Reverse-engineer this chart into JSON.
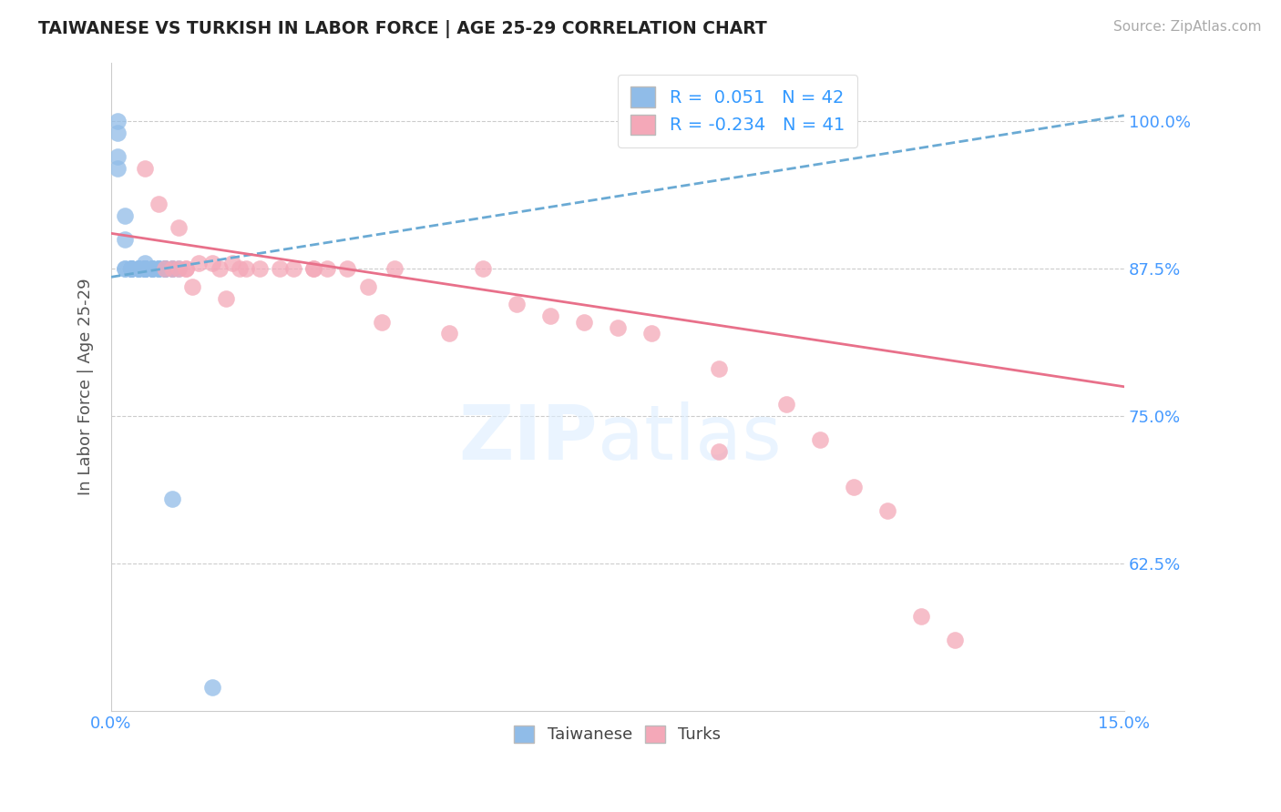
{
  "title": "TAIWANESE VS TURKISH IN LABOR FORCE | AGE 25-29 CORRELATION CHART",
  "source_text": "Source: ZipAtlas.com",
  "ylabel": "In Labor Force | Age 25-29",
  "xlim": [
    0.0,
    0.15
  ],
  "ylim": [
    0.5,
    1.05
  ],
  "xticks": [
    0.0,
    0.15
  ],
  "xticklabels": [
    "0.0%",
    "15.0%"
  ],
  "yticks": [
    0.625,
    0.75,
    0.875,
    1.0
  ],
  "yticklabels": [
    "62.5%",
    "75.0%",
    "87.5%",
    "100.0%"
  ],
  "background_color": "#ffffff",
  "legend_r_taiwanese": "0.051",
  "legend_n_taiwanese": "42",
  "legend_r_turkish": "-0.234",
  "legend_n_turkish": "41",
  "taiwanese_color": "#90bce8",
  "turkish_color": "#f4a8b8",
  "taiwanese_trend_color": "#6aaad4",
  "turkish_trend_color": "#e8708a",
  "tw_trend_x0": 0.0,
  "tw_trend_y0": 0.868,
  "tw_trend_x1": 0.15,
  "tw_trend_y1": 1.005,
  "tu_trend_x0": 0.0,
  "tu_trend_y0": 0.905,
  "tu_trend_x1": 0.15,
  "tu_trend_y1": 0.775,
  "taiwanese_x": [
    0.001,
    0.001,
    0.001,
    0.001,
    0.002,
    0.002,
    0.002,
    0.002,
    0.003,
    0.003,
    0.003,
    0.003,
    0.003,
    0.004,
    0.004,
    0.004,
    0.004,
    0.005,
    0.005,
    0.005,
    0.005,
    0.005,
    0.005,
    0.005,
    0.005,
    0.005,
    0.006,
    0.006,
    0.006,
    0.006,
    0.007,
    0.007,
    0.007,
    0.008,
    0.008,
    0.008,
    0.008,
    0.009,
    0.009,
    0.009,
    0.01,
    0.015
  ],
  "taiwanese_y": [
    1.0,
    0.99,
    0.97,
    0.96,
    0.92,
    0.9,
    0.875,
    0.875,
    0.875,
    0.875,
    0.875,
    0.875,
    0.875,
    0.875,
    0.875,
    0.875,
    0.875,
    0.88,
    0.875,
    0.875,
    0.875,
    0.875,
    0.875,
    0.875,
    0.875,
    0.875,
    0.875,
    0.875,
    0.875,
    0.875,
    0.875,
    0.875,
    0.875,
    0.875,
    0.875,
    0.875,
    0.875,
    0.875,
    0.875,
    0.68,
    0.875,
    0.52
  ],
  "turkish_x": [
    0.005,
    0.007,
    0.008,
    0.009,
    0.01,
    0.01,
    0.011,
    0.011,
    0.012,
    0.013,
    0.015,
    0.016,
    0.017,
    0.018,
    0.019,
    0.02,
    0.022,
    0.025,
    0.027,
    0.03,
    0.03,
    0.032,
    0.035,
    0.038,
    0.04,
    0.042,
    0.05,
    0.055,
    0.06,
    0.065,
    0.07,
    0.075,
    0.08,
    0.09,
    0.09,
    0.1,
    0.105,
    0.11,
    0.115,
    0.12,
    0.125
  ],
  "turkish_y": [
    0.96,
    0.93,
    0.875,
    0.875,
    0.91,
    0.875,
    0.875,
    0.875,
    0.86,
    0.88,
    0.88,
    0.875,
    0.85,
    0.88,
    0.875,
    0.875,
    0.875,
    0.875,
    0.875,
    0.875,
    0.875,
    0.875,
    0.875,
    0.86,
    0.83,
    0.875,
    0.82,
    0.875,
    0.845,
    0.835,
    0.83,
    0.825,
    0.82,
    0.79,
    0.72,
    0.76,
    0.73,
    0.69,
    0.67,
    0.58,
    0.56
  ]
}
